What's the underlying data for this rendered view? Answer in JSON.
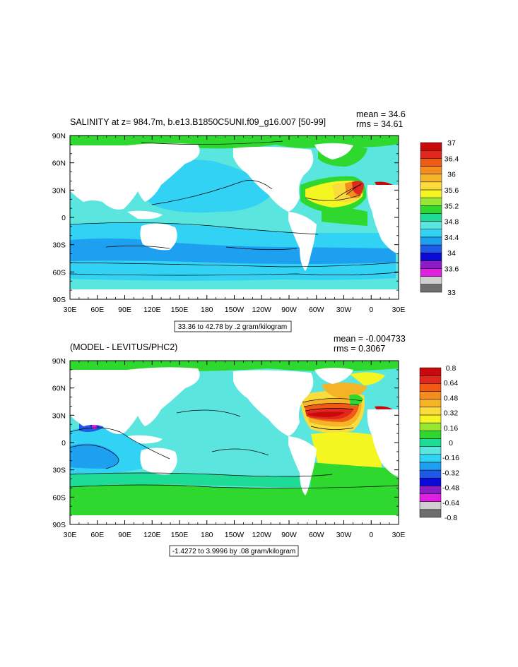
{
  "chart_data": [
    {
      "type": "heatmap",
      "title": "SALINITY at z= 984.7m, b.e13.B1850C5UNI.f09_g16.007 [50-99]",
      "mean_label": "mean = 34.6",
      "rms_label": "rms = 34.61",
      "x_ticks": [
        "30E",
        "60E",
        "90E",
        "120E",
        "150E",
        "180",
        "150W",
        "120W",
        "90W",
        "60W",
        "30W",
        "0",
        "30E"
      ],
      "y_ticks": [
        "90N",
        "60N",
        "30N",
        "0",
        "30S",
        "60S",
        "90S"
      ],
      "contour_info": "33.36 to 42.78 by .2 gram/kilogram",
      "colorbar": {
        "colors": [
          "#6e6e6e",
          "#d0d0d0",
          "#e020e0",
          "#8c1cc8",
          "#0a0ad6",
          "#1e5ae6",
          "#1ea0f0",
          "#32d2f5",
          "#5ae6de",
          "#1edc96",
          "#2ed82e",
          "#96e632",
          "#f5f522",
          "#fadc3c",
          "#f5b428",
          "#f58c1e",
          "#f05a14",
          "#e1281e",
          "#c80a0a"
        ],
        "labels": [
          "33",
          "33.6",
          "34",
          "34.4",
          "34.8",
          "35.2",
          "35.6",
          "36",
          "36.4",
          "37"
        ]
      }
    },
    {
      "type": "heatmap",
      "title": "(MODEL - LEVITUS/PHC2)",
      "mean_label": "mean = -0.004733",
      "rms_label": "rms = 0.3067",
      "x_ticks": [
        "30E",
        "60E",
        "90E",
        "120E",
        "150E",
        "180",
        "150W",
        "120W",
        "90W",
        "60W",
        "30W",
        "0",
        "30E"
      ],
      "y_ticks": [
        "90N",
        "60N",
        "30N",
        "0",
        "30S",
        "60S",
        "90S"
      ],
      "contour_info": "-1.4272 to 3.9996 by .08 gram/kilogram",
      "colorbar": {
        "colors": [
          "#6e6e6e",
          "#d0d0d0",
          "#e020e0",
          "#8c1cc8",
          "#0a0ad6",
          "#1e5ae6",
          "#1ea0f0",
          "#32d2f5",
          "#5ae6de",
          "#1edc96",
          "#2ed82e",
          "#96e632",
          "#f5f522",
          "#fadc3c",
          "#f5b428",
          "#f58c1e",
          "#f05a14",
          "#e1281e",
          "#c80a0a"
        ],
        "labels": [
          "-0.8",
          "-0.64",
          "-0.48",
          "-0.32",
          "-0.16",
          "0",
          "0.16",
          "0.32",
          "0.48",
          "0.64",
          "0.8"
        ]
      }
    }
  ]
}
